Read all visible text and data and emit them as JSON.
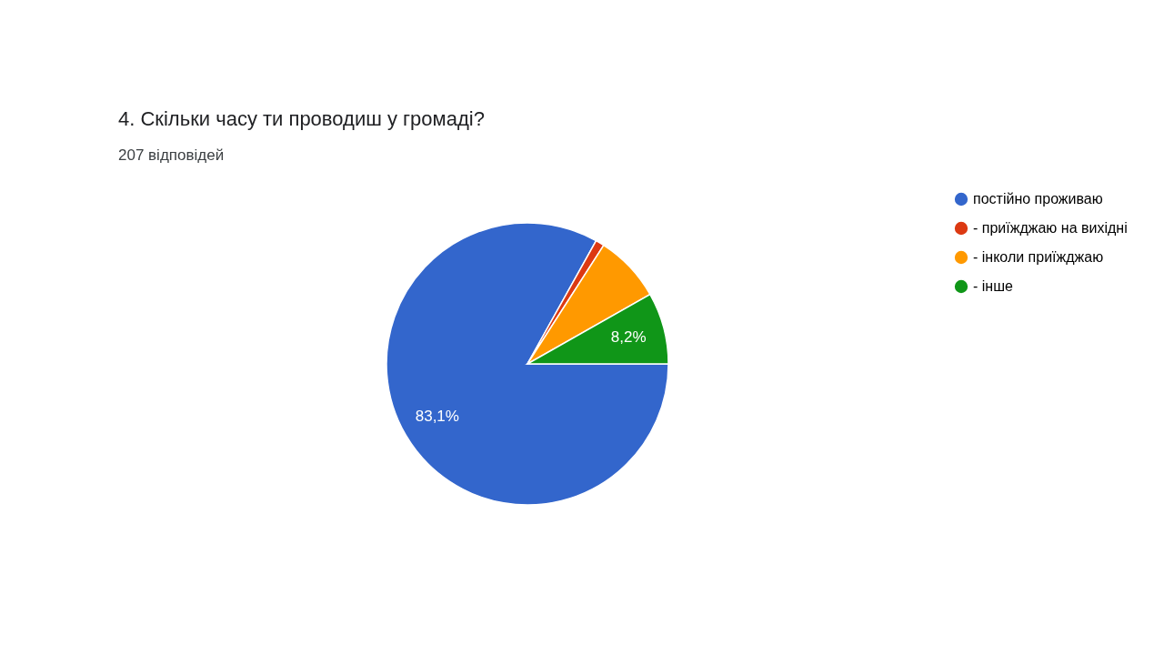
{
  "chart_data": {
    "type": "pie",
    "title": "4. Скільки часу ти проводиш у громаді?",
    "subtitle": "207 відповідей",
    "categories": [
      "постійно проживаю",
      "- приїжджаю на вихідні",
      "- інколи приїжджаю",
      "- інше"
    ],
    "values": [
      83.1,
      1.0,
      7.7,
      8.2
    ],
    "colors": [
      "#3366cc",
      "#dc3912",
      "#ff9900",
      "#109618"
    ],
    "value_labels": [
      "83,1%",
      null,
      null,
      "8,2%"
    ],
    "legend": "right"
  }
}
